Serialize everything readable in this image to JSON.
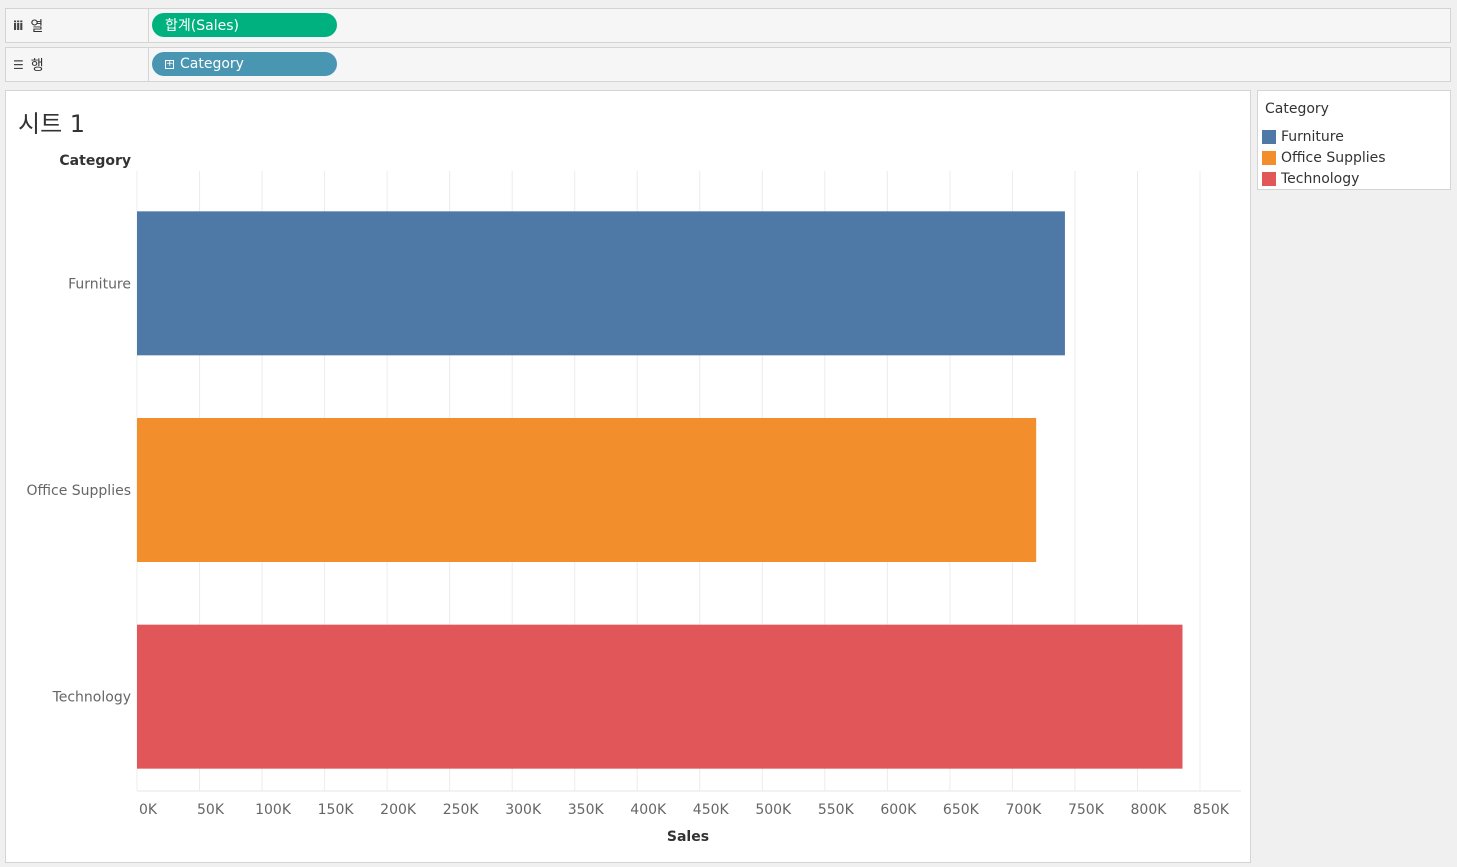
{
  "shelves": {
    "columns": {
      "label": "열",
      "icon": "bars-icon",
      "pill": "합계(Sales)"
    },
    "rows": {
      "label": "행",
      "icon": "list-icon",
      "pill": "Category",
      "pill_icon": "⊞"
    }
  },
  "sheet": {
    "title": "시트 1"
  },
  "legend": {
    "title": "Category",
    "items": [
      {
        "label": "Furniture",
        "color": "#4e79a7"
      },
      {
        "label": "Office Supplies",
        "color": "#f28e2b"
      },
      {
        "label": "Technology",
        "color": "#e15759"
      }
    ]
  },
  "chart_data": {
    "type": "bar",
    "orientation": "horizontal",
    "row_header": "Category",
    "categories": [
      "Furniture",
      "Office Supplies",
      "Technology"
    ],
    "values": [
      742000,
      719000,
      836000
    ],
    "colors": [
      "#4e79a7",
      "#f28e2b",
      "#e15759"
    ],
    "xlabel": "Sales",
    "xlim": [
      0,
      850000
    ],
    "xticks": [
      0,
      50000,
      100000,
      150000,
      200000,
      250000,
      300000,
      350000,
      400000,
      450000,
      500000,
      550000,
      600000,
      650000,
      700000,
      750000,
      800000,
      850000
    ],
    "xtick_labels": [
      "0K",
      "50K",
      "100K",
      "150K",
      "200K",
      "250K",
      "300K",
      "350K",
      "400K",
      "450K",
      "500K",
      "550K",
      "600K",
      "650K",
      "700K",
      "750K",
      "800K",
      "850K"
    ],
    "grid": true,
    "legend": "right"
  }
}
